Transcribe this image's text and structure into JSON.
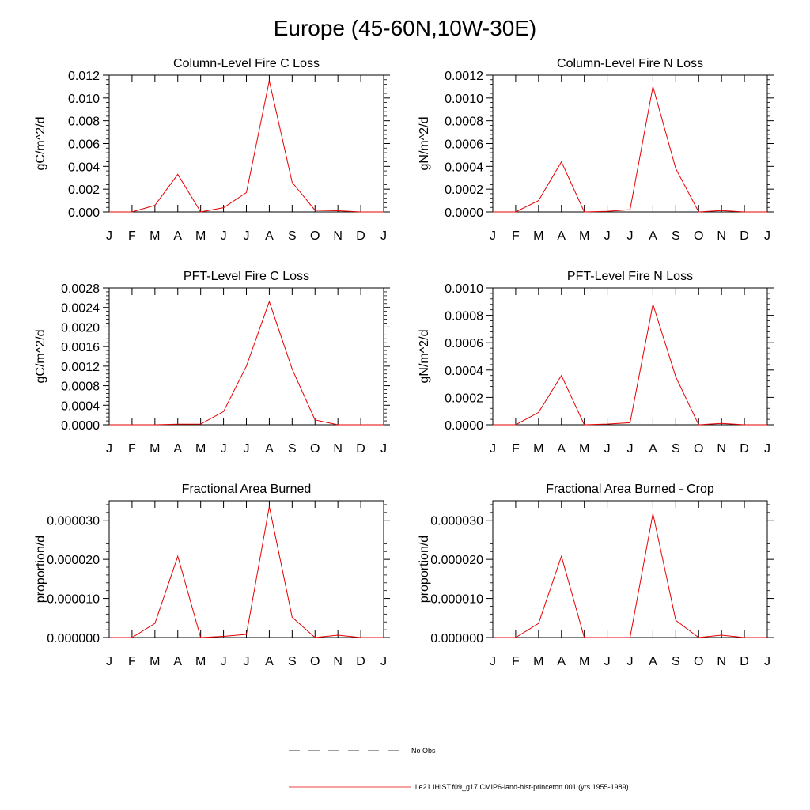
{
  "title": "Europe (45-60N,10W-30E)",
  "legend": {
    "items": [
      {
        "label": "No Obs",
        "style": "dashed",
        "color": "#000000"
      },
      {
        "label": "i.e21.IHIST.f09_g17.CMIP6-land-hist-princeton.001 (yrs 1955-1989)",
        "style": "solid",
        "color": "#e60000"
      }
    ]
  },
  "chart_data": [
    {
      "type": "line",
      "title": "Column-Level Fire C Loss",
      "ylabel": "gC/m^2/d",
      "xlabel": "",
      "categories": [
        "J",
        "F",
        "M",
        "A",
        "M",
        "J",
        "J",
        "A",
        "S",
        "O",
        "N",
        "D",
        "J"
      ],
      "ylim": [
        0,
        0.012
      ],
      "yticks": [
        0.0,
        0.002,
        0.004,
        0.006,
        0.008,
        0.01,
        0.012
      ],
      "ytick_labels": [
        "0.000",
        "0.002",
        "0.004",
        "0.006",
        "0.008",
        "0.010",
        "0.012"
      ],
      "series": [
        {
          "values": [
            0.0,
            0.0,
            0.00058,
            0.0033,
            0.0,
            0.00037,
            0.0017,
            0.0115,
            0.0026,
            0.00015,
            0.0001,
            0.0,
            0.0
          ],
          "color": "#e60000"
        }
      ]
    },
    {
      "type": "line",
      "title": "Column-Level Fire N Loss",
      "ylabel": "gN/m^2/d",
      "xlabel": "",
      "categories": [
        "J",
        "F",
        "M",
        "A",
        "M",
        "J",
        "J",
        "A",
        "S",
        "O",
        "N",
        "D",
        "J"
      ],
      "ylim": [
        0,
        0.0012
      ],
      "yticks": [
        0.0,
        0.0002,
        0.0004,
        0.0006,
        0.0008,
        0.001,
        0.0012
      ],
      "ytick_labels": [
        "0.0000",
        "0.0002",
        "0.0004",
        "0.0006",
        "0.0008",
        "0.0010",
        "0.0012"
      ],
      "series": [
        {
          "values": [
            0.0,
            0.0,
            0.0001,
            0.00044,
            0.0,
            5e-06,
            2e-05,
            0.0011,
            0.00038,
            0.0,
            1.2e-05,
            0.0,
            0.0
          ],
          "color": "#e60000"
        }
      ]
    },
    {
      "type": "line",
      "title": "PFT-Level Fire C Loss",
      "ylabel": "gC/m^2/d",
      "xlabel": "",
      "categories": [
        "J",
        "F",
        "M",
        "A",
        "M",
        "J",
        "J",
        "A",
        "S",
        "O",
        "N",
        "D",
        "J"
      ],
      "ylim": [
        0,
        0.0028
      ],
      "yticks": [
        0.0,
        0.0004,
        0.0008,
        0.0012,
        0.0016,
        0.002,
        0.0024,
        0.0028
      ],
      "ytick_labels": [
        "0.0000",
        "0.0004",
        "0.0008",
        "0.0012",
        "0.0016",
        "0.0020",
        "0.0024",
        "0.0028"
      ],
      "series": [
        {
          "values": [
            0.0,
            0.0,
            0.0,
            1.2e-05,
            1.5e-05,
            0.00027,
            0.0012,
            0.00252,
            0.00114,
            0.0001,
            0.0,
            0.0,
            0.0
          ],
          "color": "#e60000"
        }
      ]
    },
    {
      "type": "line",
      "title": "PFT-Level Fire N Loss",
      "ylabel": "gN/m^2/d",
      "xlabel": "",
      "categories": [
        "J",
        "F",
        "M",
        "A",
        "M",
        "J",
        "J",
        "A",
        "S",
        "O",
        "N",
        "D",
        "J"
      ],
      "ylim": [
        0,
        0.001
      ],
      "yticks": [
        0.0,
        0.0002,
        0.0004,
        0.0006,
        0.0008,
        0.001
      ],
      "ytick_labels": [
        "0.0000",
        "0.0002",
        "0.0004",
        "0.0006",
        "0.0008",
        "0.0010"
      ],
      "series": [
        {
          "values": [
            0.0,
            0.0,
            9e-05,
            0.00036,
            0.0,
            5e-06,
            1.5e-05,
            0.00088,
            0.00035,
            0.0,
            1e-05,
            0.0,
            0.0
          ],
          "color": "#e60000"
        }
      ]
    },
    {
      "type": "line",
      "title": "Fractional Area Burned",
      "ylabel": "proportion/d",
      "xlabel": "",
      "categories": [
        "J",
        "F",
        "M",
        "A",
        "M",
        "J",
        "J",
        "A",
        "S",
        "O",
        "N",
        "D",
        "J"
      ],
      "ylim": [
        0,
        3.5e-05
      ],
      "yticks": [
        0.0,
        1e-05,
        2e-05,
        3e-05
      ],
      "ytick_labels": [
        "0.000000",
        "0.000010",
        "0.000020",
        "0.000030"
      ],
      "series": [
        {
          "values": [
            0.0,
            0.0,
            3.6e-06,
            2.08e-05,
            0.0,
            3e-07,
            8e-07,
            3.35e-05,
            5.2e-06,
            0.0,
            6e-07,
            0.0,
            0.0
          ],
          "color": "#e60000"
        }
      ]
    },
    {
      "type": "line",
      "title": "Fractional Area Burned - Crop",
      "ylabel": "proportion/d",
      "xlabel": "",
      "categories": [
        "J",
        "F",
        "M",
        "A",
        "M",
        "J",
        "J",
        "A",
        "S",
        "O",
        "N",
        "D",
        "J"
      ],
      "ylim": [
        0,
        3.5e-05
      ],
      "yticks": [
        0.0,
        1e-05,
        2e-05,
        3e-05
      ],
      "ytick_labels": [
        "0.000000",
        "0.000010",
        "0.000020",
        "0.000030"
      ],
      "series": [
        {
          "values": [
            0.0,
            0.0,
            3.6e-06,
            2.08e-05,
            0.0,
            0.0,
            0.0,
            3.17e-05,
            4.4e-06,
            0.0,
            6e-07,
            0.0,
            0.0
          ],
          "color": "#e60000"
        }
      ]
    }
  ]
}
